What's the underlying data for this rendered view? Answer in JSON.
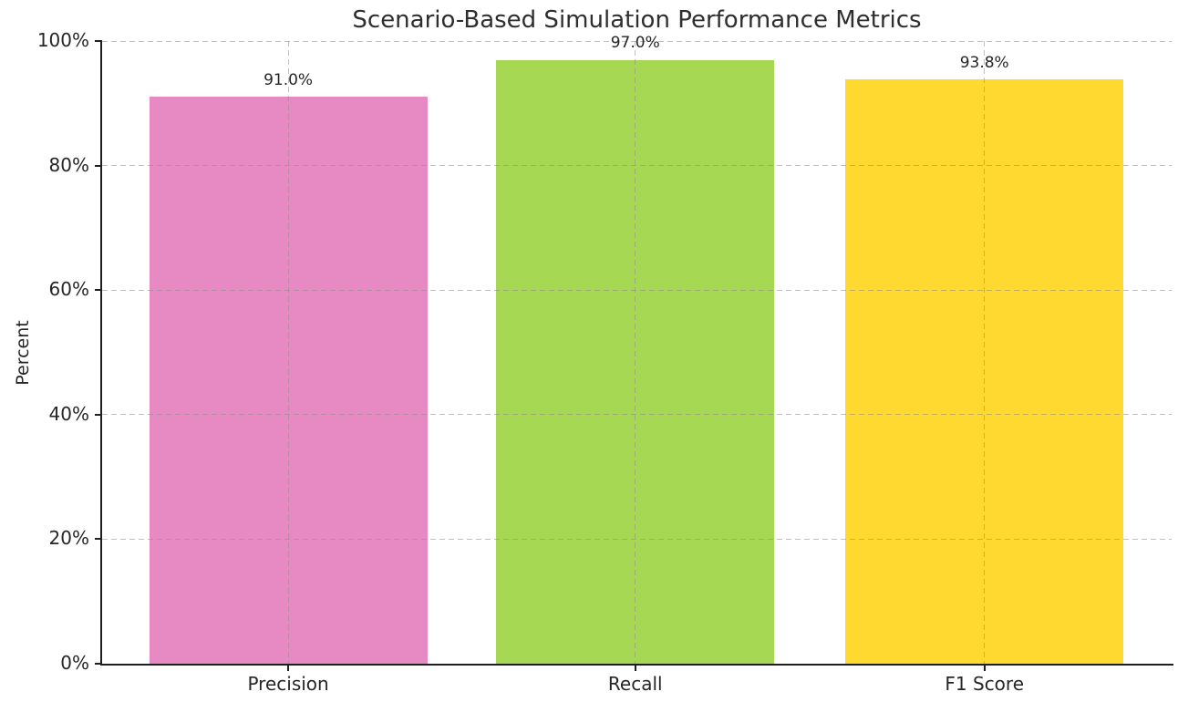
{
  "chart_data": {
    "type": "bar",
    "title": "Scenario-Based Simulation Performance Metrics",
    "xlabel": "",
    "ylabel": "Percent",
    "categories": [
      "Precision",
      "Recall",
      "F1 Score"
    ],
    "values": [
      91.0,
      97.0,
      93.8
    ],
    "value_labels": [
      "91.0%",
      "97.0%",
      "93.8%"
    ],
    "bar_colors": [
      "#e78ac3",
      "#a6d854",
      "#ffd92f"
    ],
    "ylim": [
      0,
      100
    ],
    "yticks": [
      0,
      20,
      40,
      60,
      80,
      100
    ],
    "ytick_labels": [
      "0%",
      "20%",
      "40%",
      "60%",
      "80%",
      "100%"
    ],
    "grid": "both-dashed",
    "legend": "none",
    "style": {
      "background": "#ffffff",
      "spine_color": "#1f1f1f",
      "text_color": "#262626",
      "grid_color": "#8c8c8c"
    }
  }
}
